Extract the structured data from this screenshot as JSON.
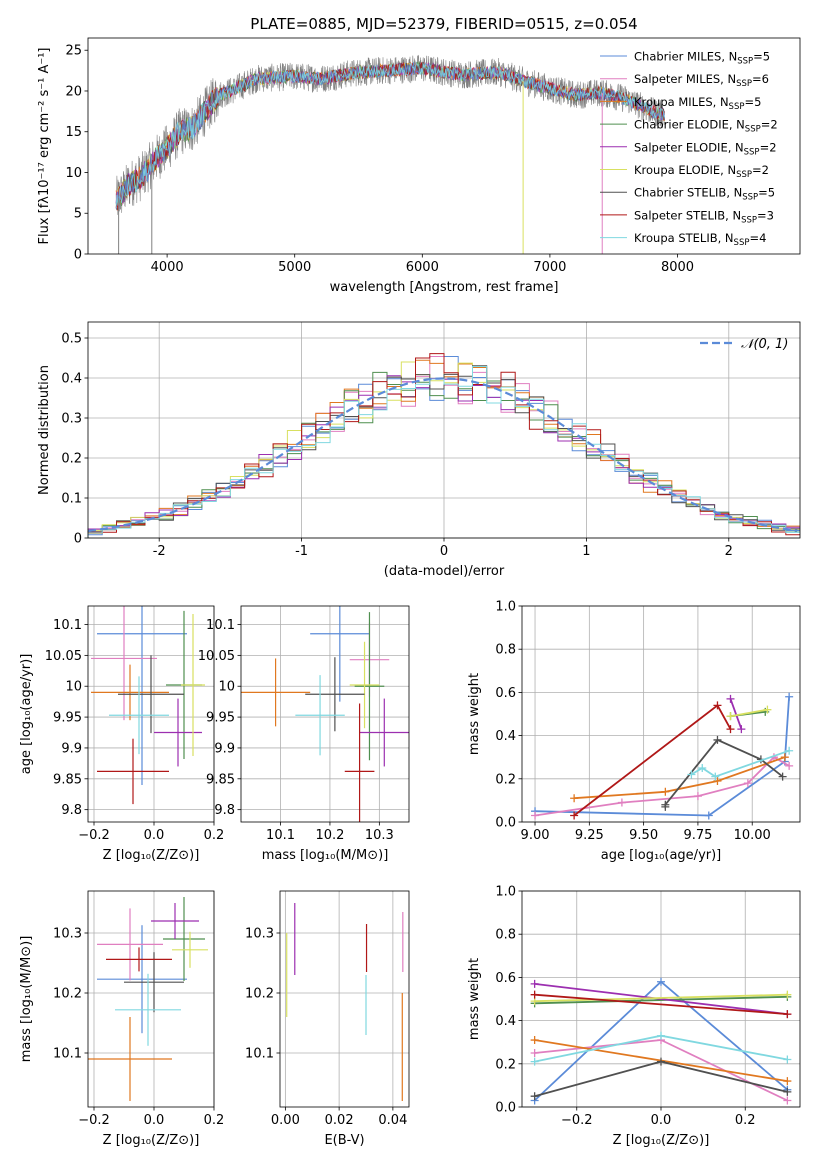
{
  "figure": {
    "title": "PLATE=0885, MJD=52379, FIBERID=0515, z=0.054"
  },
  "colors": {
    "chabrier_miles": "#5b8bd8",
    "salpeter_miles": "#e07fc0",
    "kroupa_miles": "#e07820",
    "chabrier_elodie": "#4f8f4f",
    "salpeter_elodie": "#9c2fb0",
    "kroupa_elodie": "#d8e060",
    "chabrier_stelib": "#505050",
    "salpeter_stelib": "#b01818",
    "kroupa_stelib": "#80d8e0",
    "data": "#808080",
    "gaussian": "#5b8bd8"
  },
  "chart_data": [
    {
      "id": "spectrum",
      "type": "line",
      "xlabel": "wavelength [Angstrom, rest frame]",
      "ylabel": "Flux [fλ10⁻¹⁷ erg cm⁻² s⁻¹ A⁻¹]",
      "xlim": [
        3380,
        8960
      ],
      "ylim": [
        0,
        26.5
      ],
      "xticks": [
        4000,
        5000,
        6000,
        7000,
        8000
      ],
      "yticks": [
        0,
        5,
        10,
        15,
        20,
        25
      ],
      "continuum": {
        "x": [
          3600,
          3700,
          3800,
          3900,
          4000,
          4100,
          4200,
          4300,
          4400,
          4500,
          4700,
          5000,
          5200,
          5500,
          5800,
          6000,
          6300,
          6600,
          6800,
          7000,
          7200,
          7400,
          7600,
          7800,
          7900
        ],
        "y": [
          6.5,
          8.5,
          9.5,
          11.5,
          13.0,
          15.0,
          15.5,
          17.5,
          19.5,
          20.0,
          21.5,
          21.8,
          21.5,
          22.3,
          22.6,
          22.8,
          22.0,
          22.3,
          21.2,
          20.3,
          19.5,
          19.8,
          19.0,
          17.5,
          17.0
        ]
      },
      "series": [
        {
          "name": "Chabrier MILES, N_SSP=5",
          "color_key": "chabrier_miles"
        },
        {
          "name": "Salpeter MILES, N_SSP=6",
          "color_key": "salpeter_miles"
        },
        {
          "name": "Kroupa MILES, N_SSP=5",
          "color_key": "kroupa_miles"
        },
        {
          "name": "Chabrier ELODIE, N_SSP=2",
          "color_key": "chabrier_elodie"
        },
        {
          "name": "Salpeter ELODIE, N_SSP=2",
          "color_key": "salpeter_elodie"
        },
        {
          "name": "Kroupa ELODIE, N_SSP=2",
          "color_key": "kroupa_elodie"
        },
        {
          "name": "Chabrier STELIB, N_SSP=5",
          "color_key": "chabrier_stelib"
        },
        {
          "name": "Salpeter STELIB, N_SSP=3",
          "color_key": "salpeter_stelib"
        },
        {
          "name": "Kroupa STELIB, N_SSP=4",
          "color_key": "kroupa_stelib"
        }
      ],
      "legend": "top-right"
    },
    {
      "id": "residuals",
      "type": "histogram",
      "xlabel": "(data-model)/error",
      "ylabel": "Normed distribution",
      "xlim": [
        -2.5,
        2.5
      ],
      "ylim": [
        0,
        0.54
      ],
      "xticks": [
        -2,
        -1,
        0,
        1,
        2
      ],
      "yticks": [
        0.0,
        0.1,
        0.2,
        0.3,
        0.4,
        0.5
      ],
      "gaussian_label": "𝒩(0, 1)",
      "legend": "top-right",
      "grid": true
    },
    {
      "id": "age_vs_Z",
      "type": "errorbar",
      "xlabel": "Z [log₁₀(Z/Z⊙)]",
      "ylabel": "age  [log₁₀(age/yr)]",
      "xlim": [
        -0.22,
        0.2
      ],
      "ylim": [
        9.78,
        10.13
      ],
      "xticks": [
        -0.2,
        0.0,
        0.2
      ],
      "xticklabels": [
        "−0.2",
        "0.0",
        "0.2"
      ],
      "yticks": [
        9.8,
        9.85,
        9.9,
        9.95,
        10.0,
        10.05,
        10.1
      ],
      "points": [
        {
          "color_key": "chabrier_miles",
          "x": -0.04,
          "xerr": 0.15,
          "y": 10.085,
          "yerr": 0.245
        },
        {
          "color_key": "salpeter_miles",
          "x": -0.1,
          "xerr": 0.11,
          "y": 10.045,
          "yerr": 0.1
        },
        {
          "color_key": "kroupa_miles",
          "x": -0.08,
          "xerr": 0.13,
          "y": 9.99,
          "yerr": 0.045
        },
        {
          "color_key": "chabrier_elodie",
          "x": 0.1,
          "xerr": 0.06,
          "y": 10.002,
          "yerr": 0.12
        },
        {
          "color_key": "salpeter_elodie",
          "x": 0.08,
          "xerr": 0.08,
          "y": 9.925,
          "yerr": 0.055
        },
        {
          "color_key": "kroupa_elodie",
          "x": 0.13,
          "xerr": 0.04,
          "y": 10.002,
          "yerr": 0.115
        },
        {
          "color_key": "chabrier_stelib",
          "x": -0.01,
          "xerr": 0.11,
          "y": 9.987,
          "yerr": 0.063
        },
        {
          "color_key": "salpeter_stelib",
          "x": -0.07,
          "xerr": 0.12,
          "y": 9.862,
          "yerr": 0.053
        },
        {
          "color_key": "kroupa_stelib",
          "x": -0.05,
          "xerr": 0.1,
          "y": 9.953,
          "yerr": 0.063
        }
      ]
    },
    {
      "id": "age_vs_mass",
      "type": "errorbar",
      "xlabel": "mass [log₁₀(M/M⊙)]",
      "ylabel": "",
      "xlim": [
        10.02,
        10.36
      ],
      "ylim": [
        9.78,
        10.13
      ],
      "xticks": [
        10.1,
        10.2,
        10.3
      ],
      "xticklabels": [
        "10.1",
        "10.2",
        "10.3"
      ],
      "yticks": [
        9.8,
        9.85,
        9.9,
        9.95,
        10.0,
        10.05,
        10.1
      ],
      "points": [
        {
          "color_key": "chabrier_miles",
          "x": 10.22,
          "xerr": 0.06,
          "y": 10.085,
          "yerr": 0.11
        },
        {
          "color_key": "salpeter_miles",
          "x": 10.28,
          "xerr": 0.04,
          "y": 10.043,
          "yerr": 0.06
        },
        {
          "color_key": "kroupa_miles",
          "x": 10.09,
          "xerr": 0.07,
          "y": 9.99,
          "yerr": 0.055
        },
        {
          "color_key": "chabrier_elodie",
          "x": 10.28,
          "xerr": 0.03,
          "y": 10.0,
          "yerr": 0.12
        },
        {
          "color_key": "salpeter_elodie",
          "x": 10.31,
          "xerr": 0.05,
          "y": 9.925,
          "yerr": 0.055
        },
        {
          "color_key": "kroupa_elodie",
          "x": 10.27,
          "xerr": 0.03,
          "y": 10.002,
          "yerr": 0.07
        },
        {
          "color_key": "chabrier_stelib",
          "x": 10.21,
          "xerr": 0.06,
          "y": 9.987,
          "yerr": 0.06
        },
        {
          "color_key": "salpeter_stelib",
          "x": 10.26,
          "xerr": 0.03,
          "y": 9.862,
          "yerr": 0.11
        },
        {
          "color_key": "kroupa_stelib",
          "x": 10.18,
          "xerr": 0.05,
          "y": 9.953,
          "yerr": 0.065
        }
      ]
    },
    {
      "id": "weight_vs_age",
      "type": "line",
      "xlabel": "age  [log₁₀(age/yr)]",
      "ylabel": "mass weight",
      "xlim": [
        8.94,
        10.22
      ],
      "ylim": [
        0,
        1
      ],
      "xticks": [
        9.0,
        9.25,
        9.5,
        9.75,
        10.0
      ],
      "xticklabels": [
        "9.00",
        "9.25",
        "9.50",
        "9.75",
        "10.00"
      ],
      "yticks": [
        0.0,
        0.2,
        0.4,
        0.6,
        0.8,
        1.0
      ],
      "yticklabels": [
        "0.0",
        "0.2",
        "0.4",
        "0.6",
        "0.8",
        "1.0"
      ],
      "grid": true,
      "series": [
        {
          "color_key": "chabrier_miles",
          "x": [
            9.0,
            9.8,
            10.15,
            10.17
          ],
          "y": [
            0.05,
            0.03,
            0.28,
            0.58
          ]
        },
        {
          "color_key": "salpeter_miles",
          "x": [
            9.0,
            9.4,
            9.75,
            9.98,
            10.1,
            10.17
          ],
          "y": [
            0.03,
            0.09,
            0.12,
            0.18,
            0.3,
            0.26
          ]
        },
        {
          "color_key": "kroupa_miles",
          "x": [
            9.18,
            9.6,
            9.84,
            10.15
          ],
          "y": [
            0.11,
            0.14,
            0.19,
            0.3
          ]
        },
        {
          "color_key": "chabrier_elodie",
          "x": [
            9.9,
            10.06
          ],
          "y": [
            0.49,
            0.51
          ]
        },
        {
          "color_key": "salpeter_elodie",
          "x": [
            9.9,
            9.95
          ],
          "y": [
            0.57,
            0.43
          ]
        },
        {
          "color_key": "kroupa_elodie",
          "x": [
            9.9,
            10.07
          ],
          "y": [
            0.49,
            0.52
          ]
        },
        {
          "color_key": "chabrier_stelib",
          "x": [
            9.6,
            9.6,
            9.84,
            10.04,
            10.14
          ],
          "y": [
            0.07,
            0.08,
            0.38,
            0.29,
            0.21
          ]
        },
        {
          "color_key": "salpeter_stelib",
          "x": [
            9.18,
            9.84,
            9.9
          ],
          "y": [
            0.03,
            0.54,
            0.43
          ]
        },
        {
          "color_key": "kroupa_stelib",
          "x": [
            9.72,
            9.77,
            9.83,
            10.17
          ],
          "y": [
            0.22,
            0.25,
            0.21,
            0.33
          ]
        }
      ]
    },
    {
      "id": "mass_vs_Z",
      "type": "errorbar",
      "xlabel": "Z [log₁₀(Z/Z⊙)]",
      "ylabel": "mass [log₁₀(M/M⊙)]",
      "xlim": [
        -0.22,
        0.2
      ],
      "ylim": [
        10.01,
        10.37
      ],
      "xticks": [
        -0.2,
        0.0,
        0.2
      ],
      "xticklabels": [
        "−0.2",
        "0.0",
        "0.2"
      ],
      "yticks": [
        10.1,
        10.2,
        10.3
      ],
      "yticklabels": [
        "10.1",
        "10.2",
        "10.3"
      ],
      "points": [
        {
          "color_key": "chabrier_miles",
          "x": -0.04,
          "xerr": 0.15,
          "y": 10.223,
          "yerr": 0.09
        },
        {
          "color_key": "salpeter_miles",
          "x": -0.08,
          "xerr": 0.11,
          "y": 10.281,
          "yerr": 0.06
        },
        {
          "color_key": "kroupa_miles",
          "x": -0.08,
          "xerr": 0.14,
          "y": 10.09,
          "yerr": 0.07
        },
        {
          "color_key": "chabrier_elodie",
          "x": 0.1,
          "xerr": 0.07,
          "y": 10.29,
          "yerr": 0.07
        },
        {
          "color_key": "salpeter_elodie",
          "x": 0.07,
          "xerr": 0.08,
          "y": 10.32,
          "yerr": 0.03
        },
        {
          "color_key": "kroupa_elodie",
          "x": 0.12,
          "xerr": 0.06,
          "y": 10.272,
          "yerr": 0.03
        },
        {
          "color_key": "chabrier_stelib",
          "x": 0.0,
          "xerr": 0.1,
          "y": 10.218,
          "yerr": 0.05
        },
        {
          "color_key": "salpeter_stelib",
          "x": -0.05,
          "xerr": 0.11,
          "y": 10.256,
          "yerr": 0.02
        },
        {
          "color_key": "kroupa_stelib",
          "x": -0.02,
          "xerr": 0.11,
          "y": 10.172,
          "yerr": 0.06
        }
      ]
    },
    {
      "id": "mass_vs_ebv",
      "type": "errorbar",
      "xlabel": "E(B-V)",
      "ylabel": "",
      "xlim": [
        -0.002,
        0.046
      ],
      "ylim": [
        10.01,
        10.37
      ],
      "xticks": [
        0.0,
        0.02,
        0.04
      ],
      "xticklabels": [
        "0.00",
        "0.02",
        "0.04"
      ],
      "yticks": [
        10.1,
        10.2,
        10.3
      ],
      "yticklabels": [
        "10.1",
        "10.2",
        "10.3"
      ],
      "points": [
        {
          "color_key": "kroupa_elodie",
          "x": 0.0005,
          "xerr": 0,
          "y": 10.23,
          "yerr": 0.07
        },
        {
          "color_key": "salpeter_elodie",
          "x": 0.0035,
          "xerr": 0,
          "y": 10.29,
          "yerr": 0.06
        },
        {
          "color_key": "kroupa_stelib",
          "x": 0.03,
          "xerr": 0,
          "y": 10.18,
          "yerr": 0.05
        },
        {
          "color_key": "salpeter_stelib",
          "x": 0.0302,
          "xerr": 0,
          "y": 10.275,
          "yerr": 0.04
        },
        {
          "color_key": "kroupa_miles",
          "x": 0.0435,
          "xerr": 0,
          "y": 10.11,
          "yerr": 0.09
        },
        {
          "color_key": "salpeter_miles",
          "x": 0.0437,
          "xerr": 0,
          "y": 10.285,
          "yerr": 0.05
        }
      ]
    },
    {
      "id": "weight_vs_Z",
      "type": "line",
      "xlabel": "Z [log₁₀(Z/Z⊙)]",
      "ylabel": "mass weight",
      "xlim": [
        -0.33,
        0.33
      ],
      "ylim": [
        0,
        1
      ],
      "xticks": [
        -0.2,
        0.0,
        0.2
      ],
      "xticklabels": [
        "−0.2",
        "0.0",
        "0.2"
      ],
      "yticks": [
        0.0,
        0.2,
        0.4,
        0.6,
        0.8,
        1.0
      ],
      "yticklabels": [
        "0.0",
        "0.2",
        "0.4",
        "0.6",
        "0.8",
        "1.0"
      ],
      "grid": true,
      "series": [
        {
          "color_key": "chabrier_miles",
          "x": [
            -0.3,
            0.0,
            0.3
          ],
          "y": [
            0.03,
            0.58,
            0.08
          ]
        },
        {
          "color_key": "salpeter_miles",
          "x": [
            -0.3,
            0.0,
            0.3
          ],
          "y": [
            0.25,
            0.31,
            0.03
          ]
        },
        {
          "color_key": "kroupa_miles",
          "x": [
            -0.3,
            0.3
          ],
          "y": [
            0.31,
            0.12
          ]
        },
        {
          "color_key": "chabrier_elodie",
          "x": [
            -0.3,
            0.3
          ],
          "y": [
            0.48,
            0.51
          ]
        },
        {
          "color_key": "salpeter_elodie",
          "x": [
            -0.3,
            0.3
          ],
          "y": [
            0.57,
            0.43
          ]
        },
        {
          "color_key": "kroupa_elodie",
          "x": [
            -0.3,
            0.3
          ],
          "y": [
            0.49,
            0.52
          ]
        },
        {
          "color_key": "chabrier_stelib",
          "x": [
            -0.3,
            0.0,
            0.3
          ],
          "y": [
            0.05,
            0.21,
            0.07
          ]
        },
        {
          "color_key": "salpeter_stelib",
          "x": [
            -0.3,
            0.3
          ],
          "y": [
            0.52,
            0.43
          ]
        },
        {
          "color_key": "kroupa_stelib",
          "x": [
            -0.3,
            0.0,
            0.3
          ],
          "y": [
            0.21,
            0.33,
            0.22
          ]
        }
      ]
    }
  ]
}
